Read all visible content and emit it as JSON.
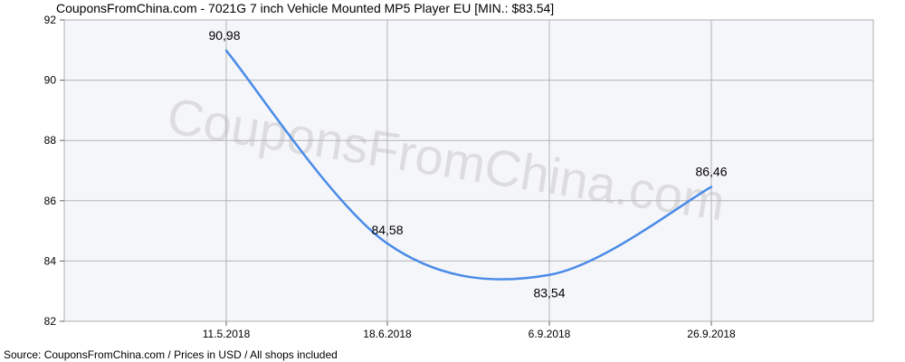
{
  "chart_data": {
    "type": "line",
    "title": "CouponsFromChina.com - 7021G 7 inch Vehicle Mounted MP5 Player EU [MIN.: $83.54]",
    "source": "Source: CouponsFromChina.com / Prices in USD / All shops included",
    "watermark": "CouponsFromChina.com",
    "x_ticks": [
      "11.5.2018",
      "18.6.2018",
      "6.9.2018",
      "26.9.2018"
    ],
    "y_ticks": [
      "82",
      "84",
      "86",
      "88",
      "90",
      "92"
    ],
    "ylim": [
      82,
      92
    ],
    "grid": true,
    "series": [
      {
        "color": "#4a8be8",
        "points": [
          {
            "x": "11.5.2018",
            "y": 90.98,
            "label": "90,98"
          },
          {
            "x": "18.6.2018",
            "y": 84.58,
            "label": "84,58"
          },
          {
            "x": "6.9.2018",
            "y": 83.54,
            "label": "83,54"
          },
          {
            "x": "26.9.2018",
            "y": 86.46,
            "label": "86,46"
          }
        ]
      }
    ]
  }
}
